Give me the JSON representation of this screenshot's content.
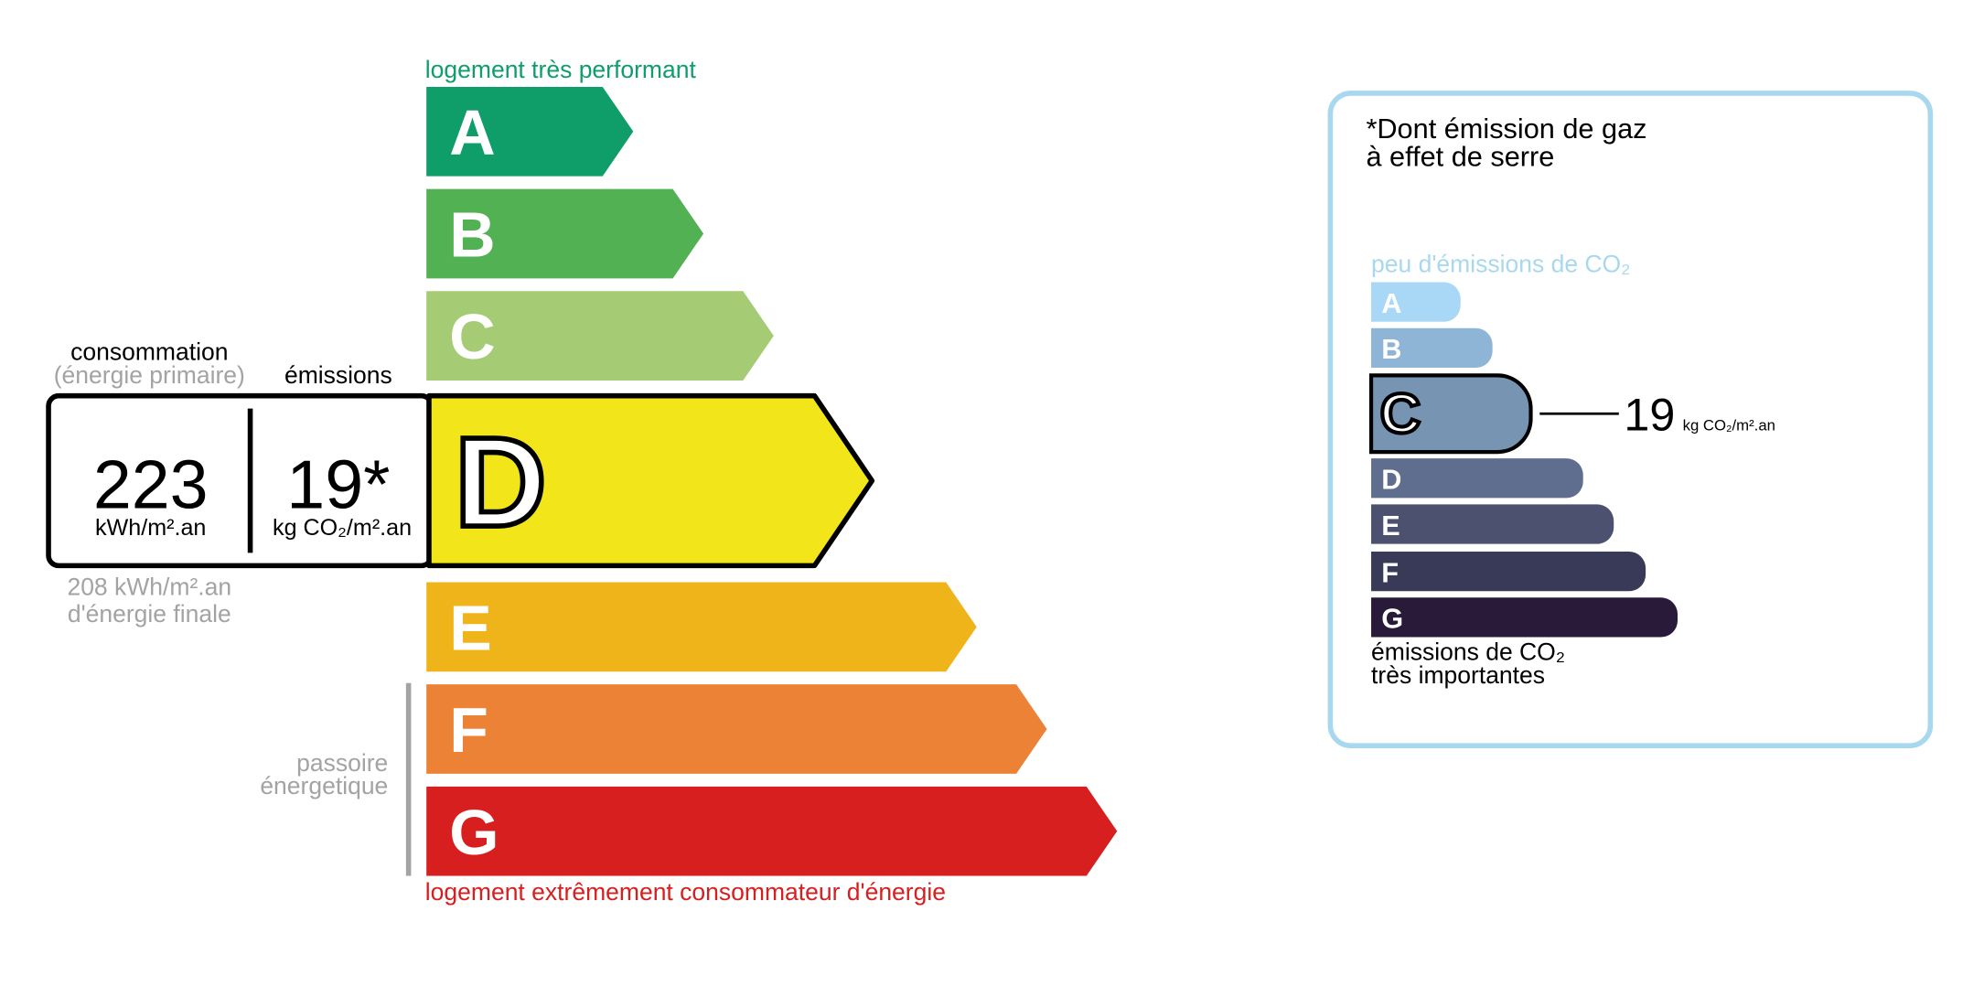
{
  "energy": {
    "top_label": "logement très performant",
    "bottom_label": "logement extrêmement consommateur d'énergie",
    "classes": [
      "A",
      "B",
      "C",
      "D",
      "E",
      "F",
      "G"
    ],
    "current": "D",
    "consumption_title": "consommation",
    "consumption_subtitle": "(énergie primaire)",
    "emissions_title": "émissions",
    "consumption_value": "223",
    "consumption_unit": "kWh/m².an",
    "emissions_value": "19*",
    "emissions_unit": "kg CO₂/m².an",
    "final_energy_value": "208 kWh/m².an",
    "final_energy_label": "d'énergie finale",
    "passoire_lines": [
      "passoire",
      "énergetique"
    ]
  },
  "ghg": {
    "title_lines": [
      "*Dont émission de gaz",
      "à effet de serre"
    ],
    "top_label": "peu d'émissions de CO₂",
    "classes": [
      "A",
      "B",
      "C",
      "D",
      "E",
      "F",
      "G"
    ],
    "current": "C",
    "value": "19",
    "unit": "kg CO₂/m².an",
    "bottom_label_lines": [
      "émissions de CO₂",
      "très importantes"
    ]
  }
}
